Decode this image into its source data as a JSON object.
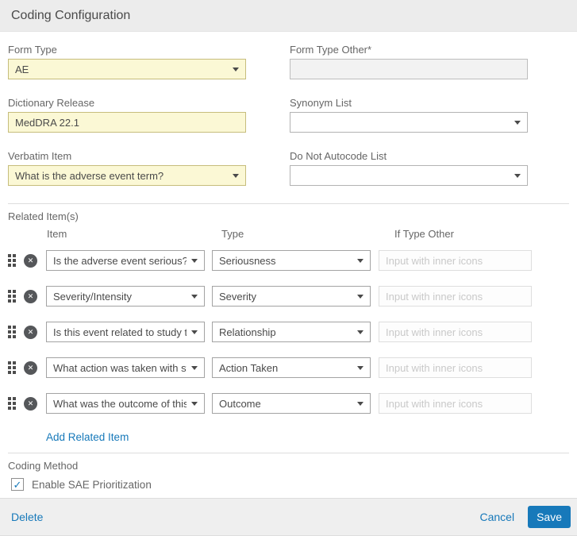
{
  "header": {
    "title": "Coding Configuration"
  },
  "form": {
    "form_type": {
      "label": "Form Type",
      "value": "AE"
    },
    "form_type_other": {
      "label": "Form Type Other*",
      "value": ""
    },
    "dictionary_release": {
      "label": "Dictionary Release",
      "value": "MedDRA 22.1"
    },
    "synonym_list": {
      "label": "Synonym List",
      "value": ""
    },
    "verbatim_item": {
      "label": "Verbatim Item",
      "value": "What is the adverse event term?"
    },
    "do_not_autocode_list": {
      "label": "Do Not Autocode List",
      "value": ""
    }
  },
  "related_items": {
    "section_label": "Related Item(s)",
    "columns": {
      "item": "Item",
      "type": "Type",
      "if_type_other": "If Type Other"
    },
    "placeholder": "Input with inner icons",
    "rows": [
      {
        "item": "Is the adverse event serious?",
        "type": "Seriousness"
      },
      {
        "item": "Severity/Intensity",
        "type": "Severity"
      },
      {
        "item": "Is this event related to study t...",
        "type": "Relationship"
      },
      {
        "item": "What action was taken with st...",
        "type": "Action Taken"
      },
      {
        "item": "What was the outcome of this...",
        "type": "Outcome"
      }
    ],
    "add_link": "Add Related Item"
  },
  "coding_method": {
    "label": "Coding Method",
    "checkbox_label": "Enable SAE Prioritization",
    "checked": true
  },
  "footer": {
    "delete_label": "Delete",
    "cancel_label": "Cancel",
    "save_label": "Save"
  },
  "icons": {
    "close": "✕",
    "check": "✓"
  },
  "colors": {
    "accent_blue": "#1779ba",
    "highlight_yellow": "#fbf8d5",
    "header_gray": "#ececec"
  }
}
